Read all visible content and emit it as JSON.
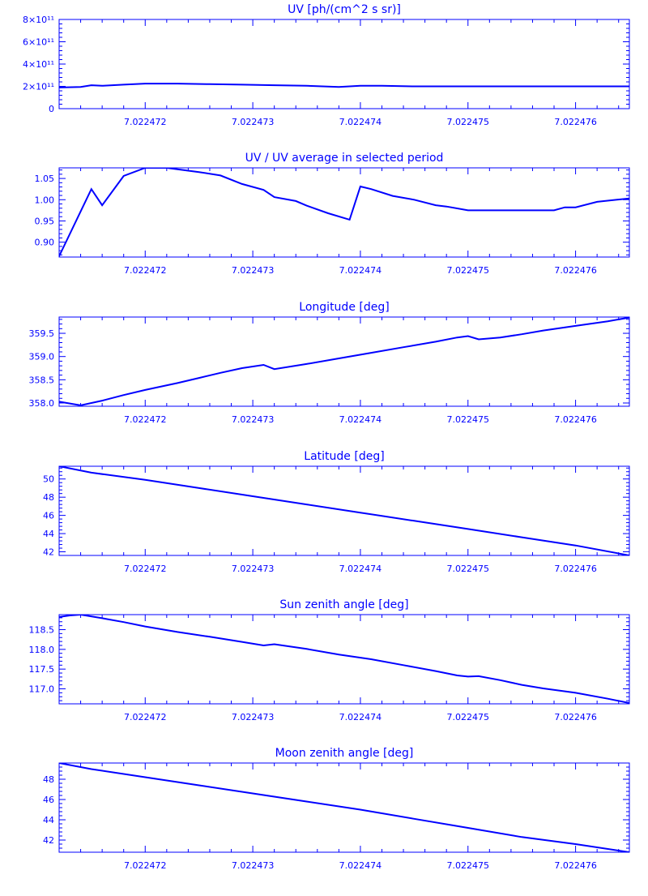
{
  "colors": {
    "axis": "#0000ff",
    "line": "#0000ff",
    "background": "#ffffff"
  },
  "chart_data": [
    {
      "type": "line",
      "title": "UV [ph/(cm^2 s sr)]",
      "xlabel": "",
      "ylabel": "",
      "xlim": [
        7.0224712,
        7.0224765
      ],
      "ylim": [
        0,
        800000000000.0
      ],
      "x_ticks": [
        "7.022472",
        "7.022473",
        "7.022474",
        "7.022475",
        "7.022476"
      ],
      "y_ticks": [
        {
          "value": 0,
          "label": "0"
        },
        {
          "value": 200000000000.0,
          "label": "2×10¹¹"
        },
        {
          "value": 400000000000.0,
          "label": "4×10¹¹"
        },
        {
          "value": 600000000000.0,
          "label": "6×10¹¹"
        },
        {
          "value": 800000000000.0,
          "label": "8×10¹¹"
        }
      ],
      "x": [
        7.0224712,
        7.0224714,
        7.0224715,
        7.0224716,
        7.0224718,
        7.022472,
        7.0224723,
        7.0224726,
        7.0224729,
        7.0224732,
        7.0224735,
        7.0224738,
        7.022474,
        7.0224742,
        7.0224745,
        7.022475,
        7.0224755,
        7.022476,
        7.0224765
      ],
      "y": [
        190000000000.0,
        195000000000.0,
        210000000000.0,
        205000000000.0,
        215000000000.0,
        225000000000.0,
        225000000000.0,
        220000000000.0,
        215000000000.0,
        210000000000.0,
        205000000000.0,
        195000000000.0,
        205000000000.0,
        205000000000.0,
        200000000000.0,
        200000000000.0,
        200000000000.0,
        200000000000.0,
        200000000000.0
      ]
    },
    {
      "type": "line",
      "title": "UV / UV average in selected period",
      "xlabel": "",
      "ylabel": "",
      "xlim": [
        7.0224712,
        7.0224765
      ],
      "ylim": [
        0.865,
        1.075
      ],
      "x_ticks": [
        "7.022472",
        "7.022473",
        "7.022474",
        "7.022475",
        "7.022476"
      ],
      "y_ticks": [
        {
          "value": 0.9,
          "label": "0.90"
        },
        {
          "value": 0.95,
          "label": "0.95"
        },
        {
          "value": 1.0,
          "label": "1.00"
        },
        {
          "value": 1.05,
          "label": "1.05"
        }
      ],
      "x": [
        7.0224712,
        7.0224715,
        7.0224716,
        7.0224718,
        7.022472,
        7.0224722,
        7.0224725,
        7.0224727,
        7.0224729,
        7.0224731,
        7.0224732,
        7.0224734,
        7.0224735,
        7.0224737,
        7.0224739,
        7.022474,
        7.0224741,
        7.0224743,
        7.0224745,
        7.0224747,
        7.0224748,
        7.022475,
        7.0224752,
        7.0224755,
        7.0224758,
        7.0224759,
        7.022476,
        7.0224762,
        7.0224765
      ],
      "y": [
        0.867,
        1.025,
        0.987,
        1.056,
        1.075,
        1.075,
        1.065,
        1.057,
        1.037,
        1.023,
        1.006,
        0.997,
        0.986,
        0.968,
        0.953,
        1.031,
        1.025,
        1.009,
        1.0,
        0.987,
        0.984,
        0.975,
        0.975,
        0.975,
        0.975,
        0.982,
        0.982,
        0.995,
        1.003
      ]
    },
    {
      "type": "line",
      "title": "Longitude [deg]",
      "xlabel": "",
      "ylabel": "",
      "xlim": [
        7.0224712,
        7.0224765
      ],
      "ylim": [
        357.93,
        359.85
      ],
      "x_ticks": [
        "7.022472",
        "7.022473",
        "7.022474",
        "7.022475",
        "7.022476"
      ],
      "y_ticks": [
        {
          "value": 358.0,
          "label": "358.0"
        },
        {
          "value": 358.5,
          "label": "358.5"
        },
        {
          "value": 359.0,
          "label": "359.0"
        },
        {
          "value": 359.5,
          "label": "359.5"
        }
      ],
      "x": [
        7.0224712,
        7.0224713,
        7.0224714,
        7.0224716,
        7.0224718,
        7.022472,
        7.0224723,
        7.0224725,
        7.0224727,
        7.0224729,
        7.0224731,
        7.0224732,
        7.0224735,
        7.0224738,
        7.0224741,
        7.0224744,
        7.0224747,
        7.0224749,
        7.022475,
        7.0224751,
        7.0224753,
        7.0224755,
        7.0224757,
        7.022476,
        7.0224763,
        7.0224765
      ],
      "y": [
        358.03,
        357.99,
        357.95,
        358.05,
        358.17,
        358.28,
        358.43,
        358.54,
        358.65,
        358.75,
        358.82,
        358.73,
        358.84,
        358.96,
        359.08,
        359.2,
        359.32,
        359.41,
        359.44,
        359.37,
        359.41,
        359.48,
        359.56,
        359.66,
        359.76,
        359.84
      ]
    },
    {
      "type": "line",
      "title": "Latitude [deg]",
      "xlabel": "",
      "ylabel": "",
      "xlim": [
        7.0224712,
        7.0224765
      ],
      "ylim": [
        41.6,
        51.4
      ],
      "x_ticks": [
        "7.022472",
        "7.022473",
        "7.022474",
        "7.022475",
        "7.022476"
      ],
      "y_ticks": [
        {
          "value": 42,
          "label": "42"
        },
        {
          "value": 44,
          "label": "44"
        },
        {
          "value": 46,
          "label": "46"
        },
        {
          "value": 48,
          "label": "48"
        },
        {
          "value": 50,
          "label": "50"
        }
      ],
      "x": [
        7.0224712,
        7.0224715,
        7.022472,
        7.0224725,
        7.022473,
        7.0224735,
        7.022474,
        7.0224745,
        7.022475,
        7.0224755,
        7.022476,
        7.0224765
      ],
      "y": [
        51.4,
        50.7,
        49.9,
        49.0,
        48.1,
        47.2,
        46.3,
        45.4,
        44.5,
        43.6,
        42.7,
        41.6
      ]
    },
    {
      "type": "line",
      "title": "Sun zenith angle [deg]",
      "xlabel": "",
      "ylabel": "",
      "xlim": [
        7.0224712,
        7.0224765
      ],
      "ylim": [
        116.62,
        118.88
      ],
      "x_ticks": [
        "7.022472",
        "7.022473",
        "7.022474",
        "7.022475",
        "7.022476"
      ],
      "y_ticks": [
        {
          "value": 117.0,
          "label": "117.0"
        },
        {
          "value": 117.5,
          "label": "117.5"
        },
        {
          "value": 118.0,
          "label": "118.0"
        },
        {
          "value": 118.5,
          "label": "118.5"
        }
      ],
      "x": [
        7.0224712,
        7.0224713,
        7.0224714,
        7.0224716,
        7.0224718,
        7.022472,
        7.0224723,
        7.0224726,
        7.0224729,
        7.0224731,
        7.0224732,
        7.0224735,
        7.0224738,
        7.0224741,
        7.0224744,
        7.0224747,
        7.0224749,
        7.022475,
        7.0224751,
        7.0224753,
        7.0224755,
        7.0224757,
        7.022476,
        7.0224763,
        7.0224765
      ],
      "y": [
        118.82,
        118.86,
        118.88,
        118.79,
        118.69,
        118.58,
        118.44,
        118.32,
        118.19,
        118.1,
        118.13,
        118.01,
        117.87,
        117.75,
        117.6,
        117.45,
        117.34,
        117.31,
        117.32,
        117.22,
        117.1,
        117.01,
        116.9,
        116.75,
        116.64
      ]
    },
    {
      "type": "line",
      "title": "Moon zenith angle [deg]",
      "xlabel": "",
      "ylabel": "",
      "xlim": [
        7.0224712,
        7.0224765
      ],
      "ylim": [
        40.8,
        49.6
      ],
      "x_ticks": [
        "7.022472",
        "7.022473",
        "7.022474",
        "7.022475",
        "7.022476"
      ],
      "y_ticks": [
        {
          "value": 42,
          "label": "42"
        },
        {
          "value": 44,
          "label": "44"
        },
        {
          "value": 46,
          "label": "46"
        },
        {
          "value": 48,
          "label": "48"
        }
      ],
      "x": [
        7.0224712,
        7.0224715,
        7.022472,
        7.0224725,
        7.022473,
        7.0224735,
        7.022474,
        7.0224745,
        7.022475,
        7.0224755,
        7.022476,
        7.0224765
      ],
      "y": [
        49.6,
        49.0,
        48.2,
        47.4,
        46.6,
        45.8,
        45.0,
        44.1,
        43.2,
        42.3,
        41.6,
        40.8
      ]
    }
  ]
}
